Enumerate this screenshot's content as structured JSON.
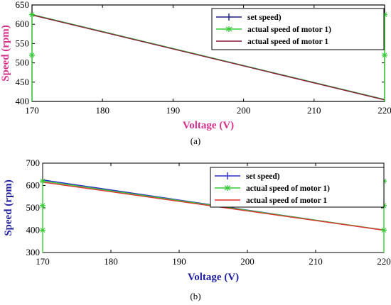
{
  "chart_data": [
    {
      "type": "line",
      "panel_caption": "(a)",
      "xlabel": "Voltage (V)",
      "ylabel": "Speed (rpm)",
      "xlim": [
        170,
        220
      ],
      "ylim": [
        400,
        650
      ],
      "x_ticks": [
        170,
        180,
        190,
        200,
        210,
        220
      ],
      "y_ticks": [
        400,
        450,
        500,
        550,
        600,
        650
      ],
      "label_color": "#d6308c",
      "grid": false,
      "legend_position": "top-right",
      "series": [
        {
          "name": "set speed)",
          "color": "#1a1a8c",
          "marker": "+",
          "x": [
            170,
            220
          ],
          "y": [
            625,
            405
          ]
        },
        {
          "name": "actual speed of motor 1)",
          "color": "#33cc33",
          "marker": "*",
          "x": [
            170,
            220
          ],
          "y": [
            625,
            405
          ]
        },
        {
          "name": "actual speed of motor 1",
          "color": "#8b1a3a",
          "marker": "",
          "x": [
            170,
            220
          ],
          "y": [
            624,
            404
          ]
        }
      ],
      "endpoint_markers": [
        {
          "x": 170,
          "y": [
            520,
            625
          ]
        },
        {
          "x": 220,
          "y": [
            520,
            625
          ]
        }
      ]
    },
    {
      "type": "line",
      "panel_caption": "(b)",
      "xlabel": "Voltage (V)",
      "ylabel": "Speed (rpm)",
      "xlim": [
        170,
        220
      ],
      "ylim": [
        300,
        700
      ],
      "x_ticks": [
        170,
        180,
        190,
        200,
        210,
        220
      ],
      "y_ticks": [
        300,
        400,
        500,
        600,
        700
      ],
      "label_color": "#1f1f9e",
      "grid": false,
      "legend_position": "top-right",
      "series": [
        {
          "name": "set speed)",
          "color": "#2b2bcc",
          "marker": "+",
          "x": [
            170,
            220
          ],
          "y": [
            625,
            400
          ]
        },
        {
          "name": "actual speed of motor 1)",
          "color": "#33cc33",
          "marker": "*",
          "x": [
            170,
            220
          ],
          "y": [
            620,
            401
          ]
        },
        {
          "name": "actual speed of motor 1",
          "color": "#e03030",
          "marker": "",
          "x": [
            170,
            220
          ],
          "y": [
            615,
            400
          ]
        }
      ],
      "endpoint_markers": [
        {
          "x": 170,
          "y": [
            400,
            510,
            620
          ]
        },
        {
          "x": 220,
          "y": [
            400,
            510,
            620
          ]
        }
      ]
    }
  ]
}
